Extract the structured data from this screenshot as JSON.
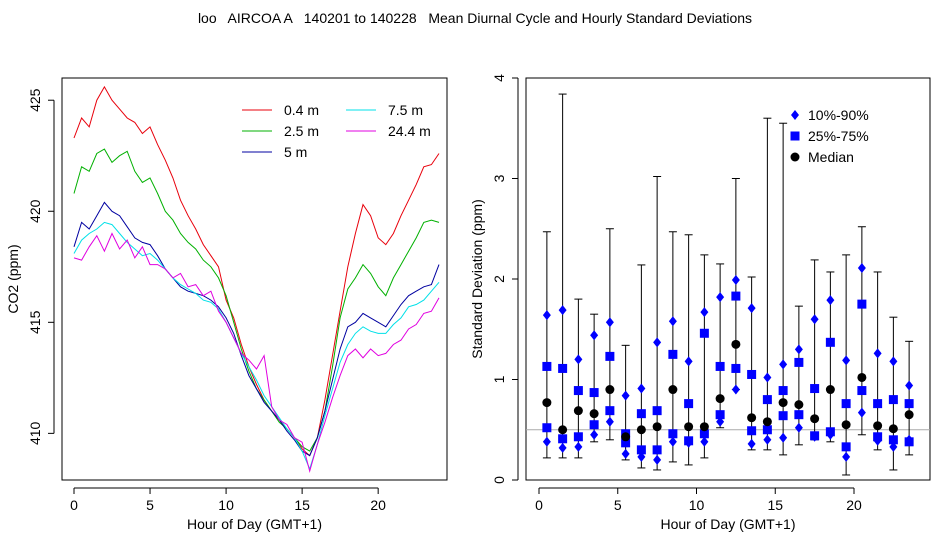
{
  "title": "loo   AIRCOA A   140201 to 140228   Mean Diurnal Cycle and Hourly Standard Deviations",
  "chart_data": [
    {
      "type": "line",
      "xlabel": "Hour of Day (GMT+1)",
      "ylabel": "CO2 (ppm)",
      "xlim": [
        0,
        24
      ],
      "ylim": [
        407.9,
        426
      ],
      "xticks": [
        0,
        5,
        10,
        15,
        20
      ],
      "yticks": [
        410,
        415,
        420,
        425
      ],
      "legend_position": "top-right",
      "x": [
        0,
        0.5,
        1,
        1.5,
        2,
        2.5,
        3,
        3.5,
        4,
        4.5,
        5,
        5.5,
        6,
        6.5,
        7,
        7.5,
        8,
        8.5,
        9,
        9.5,
        10,
        10.5,
        11,
        11.5,
        12,
        12.5,
        13,
        13.5,
        14,
        14.5,
        15,
        15.5,
        16,
        16.5,
        17,
        17.5,
        18,
        18.5,
        19,
        19.5,
        20,
        20.5,
        21,
        21.5,
        22,
        22.5,
        23,
        23.5,
        24
      ],
      "series": [
        {
          "name": "0.4 m",
          "color": "#e8000b",
          "values": [
            423.3,
            424.2,
            423.8,
            425.0,
            425.6,
            425.0,
            424.6,
            424.2,
            424.0,
            423.5,
            423.8,
            423.0,
            422.3,
            421.5,
            420.5,
            419.8,
            419.2,
            418.5,
            418.0,
            417.5,
            416.0,
            415.2,
            414.0,
            413.0,
            412.2,
            411.5,
            411.0,
            410.6,
            410.2,
            409.8,
            409.3,
            409.0,
            409.8,
            411.5,
            413.5,
            415.5,
            417.5,
            419.0,
            420.3,
            419.8,
            418.8,
            418.5,
            419.0,
            419.8,
            420.5,
            421.2,
            422.0,
            422.1,
            422.6
          ]
        },
        {
          "name": "2.5 m",
          "color": "#00b000",
          "values": [
            420.8,
            422.0,
            421.8,
            422.6,
            422.8,
            422.2,
            422.5,
            422.7,
            421.8,
            421.3,
            421.5,
            420.8,
            420.0,
            419.6,
            419.0,
            418.6,
            418.3,
            417.8,
            417.5,
            417.0,
            416.2,
            415.0,
            413.8,
            412.8,
            412.0,
            411.5,
            411.0,
            410.5,
            410.2,
            409.8,
            409.4,
            409.2,
            409.8,
            411.0,
            413.0,
            415.2,
            416.5,
            417.0,
            417.6,
            417.2,
            416.6,
            416.2,
            417.0,
            417.6,
            418.2,
            418.8,
            419.5,
            419.6,
            419.5
          ]
        },
        {
          "name": "5 m",
          "color": "#0000a0",
          "values": [
            418.4,
            419.5,
            419.2,
            419.8,
            420.4,
            420.0,
            419.8,
            419.3,
            418.8,
            418.6,
            418.5,
            418.0,
            417.4,
            417.0,
            416.6,
            416.4,
            416.3,
            416.2,
            416.0,
            415.7,
            415.2,
            414.5,
            413.5,
            412.6,
            412.0,
            411.4,
            411.0,
            410.6,
            410.1,
            409.7,
            409.2,
            409.0,
            409.8,
            411.0,
            412.4,
            413.8,
            414.8,
            415.0,
            415.4,
            415.2,
            415.0,
            414.8,
            415.3,
            415.8,
            416.2,
            416.4,
            416.6,
            416.7,
            417.6
          ]
        },
        {
          "name": "7.5 m",
          "color": "#00e0e8",
          "values": [
            418.1,
            418.7,
            419.0,
            419.2,
            419.5,
            419.4,
            419.0,
            418.6,
            418.3,
            418.0,
            418.1,
            417.8,
            417.4,
            417.0,
            416.7,
            416.5,
            416.3,
            416.0,
            415.9,
            415.6,
            415.0,
            414.3,
            413.6,
            413.0,
            412.4,
            411.7,
            411.2,
            410.7,
            410.2,
            409.8,
            409.2,
            408.4,
            409.5,
            410.8,
            412.0,
            413.2,
            414.0,
            414.5,
            414.8,
            414.6,
            414.5,
            414.5,
            414.9,
            415.2,
            415.7,
            415.8,
            416.0,
            416.4,
            416.8
          ]
        },
        {
          "name": "24.4 m",
          "color": "#e000e0",
          "values": [
            417.9,
            417.8,
            418.4,
            418.9,
            418.2,
            419.0,
            418.3,
            418.7,
            417.9,
            418.4,
            417.6,
            417.6,
            417.4,
            417.0,
            417.2,
            416.6,
            416.7,
            416.2,
            416.4,
            415.5,
            415.0,
            414.3,
            413.6,
            413.3,
            412.9,
            413.5,
            411.2,
            410.6,
            410.4,
            409.8,
            409.6,
            408.3,
            409.5,
            410.5,
            411.6,
            412.6,
            413.5,
            413.8,
            413.4,
            413.8,
            413.5,
            413.6,
            414.0,
            414.2,
            414.7,
            414.9,
            415.4,
            415.5,
            416.1
          ]
        }
      ]
    },
    {
      "type": "scatter",
      "xlabel": "Hour of Day (GMT+1)",
      "ylabel": "Standard Deviation (ppm)",
      "xlim": [
        0,
        24
      ],
      "ylim": [
        0,
        4
      ],
      "xticks": [
        0,
        5,
        10,
        15,
        20
      ],
      "yticks": [
        0,
        1,
        2,
        3,
        4
      ],
      "reference_line": 0.5,
      "legend_position": "top-right",
      "legend": [
        {
          "label": "10%-90%",
          "marker": "diamond",
          "color": "#0000ff"
        },
        {
          "label": "25%-75%",
          "marker": "square",
          "color": "#0000ff"
        },
        {
          "label": "Median",
          "marker": "circle",
          "color": "#000000"
        }
      ],
      "hours": [
        0.5,
        1.5,
        2.5,
        3.5,
        4.5,
        5.5,
        6.5,
        7.5,
        8.5,
        9.5,
        10.5,
        11.5,
        12.5,
        13.5,
        14.5,
        15.5,
        16.5,
        17.5,
        18.5,
        19.5,
        20.5,
        21.5,
        22.5,
        23.5
      ],
      "whisker_low": [
        0.22,
        0.22,
        0.22,
        0.38,
        0.4,
        0.2,
        0.12,
        0.1,
        0.18,
        0.15,
        0.22,
        0.52,
        0.9,
        0.3,
        0.3,
        0.25,
        0.35,
        0.4,
        0.38,
        0.05,
        0.45,
        0.3,
        0.1,
        0.25
      ],
      "whisker_high": [
        2.47,
        3.84,
        1.8,
        1.65,
        2.5,
        1.34,
        2.14,
        3.02,
        2.47,
        2.44,
        2.24,
        2.15,
        3.0,
        2.02,
        3.6,
        3.55,
        1.73,
        2.19,
        2.07,
        2.24,
        2.52,
        2.07,
        1.62,
        1.38
      ],
      "p10": [
        0.38,
        0.32,
        0.33,
        0.45,
        0.58,
        0.26,
        0.23,
        0.2,
        0.38,
        0.37,
        0.38,
        0.58,
        0.9,
        0.36,
        0.4,
        0.42,
        0.52,
        0.43,
        0.45,
        0.23,
        0.67,
        0.39,
        0.33,
        0.4
      ],
      "p90": [
        1.64,
        1.69,
        1.2,
        1.44,
        1.57,
        0.84,
        0.91,
        1.37,
        1.58,
        1.18,
        1.67,
        1.82,
        1.99,
        1.71,
        1.02,
        1.15,
        1.3,
        1.6,
        1.79,
        1.19,
        2.11,
        1.26,
        1.18,
        0.94
      ],
      "p25": [
        0.52,
        0.41,
        0.43,
        0.55,
        0.69,
        0.37,
        0.3,
        0.3,
        0.46,
        0.39,
        0.46,
        0.65,
        1.11,
        0.49,
        0.5,
        0.64,
        0.65,
        0.44,
        0.48,
        0.33,
        0.89,
        0.43,
        0.4,
        0.38
      ],
      "p75": [
        1.13,
        1.11,
        0.89,
        0.87,
        1.23,
        0.46,
        0.66,
        0.69,
        1.25,
        0.76,
        1.46,
        1.13,
        1.83,
        1.05,
        0.8,
        0.89,
        1.17,
        0.91,
        1.37,
        0.76,
        1.75,
        0.76,
        0.8,
        0.76
      ],
      "median": [
        0.77,
        0.5,
        0.69,
        0.66,
        0.9,
        0.43,
        0.5,
        0.53,
        0.9,
        0.53,
        0.53,
        0.81,
        1.35,
        0.62,
        0.58,
        0.77,
        0.75,
        0.61,
        0.9,
        0.55,
        1.02,
        0.54,
        0.51,
        0.65
      ]
    }
  ]
}
